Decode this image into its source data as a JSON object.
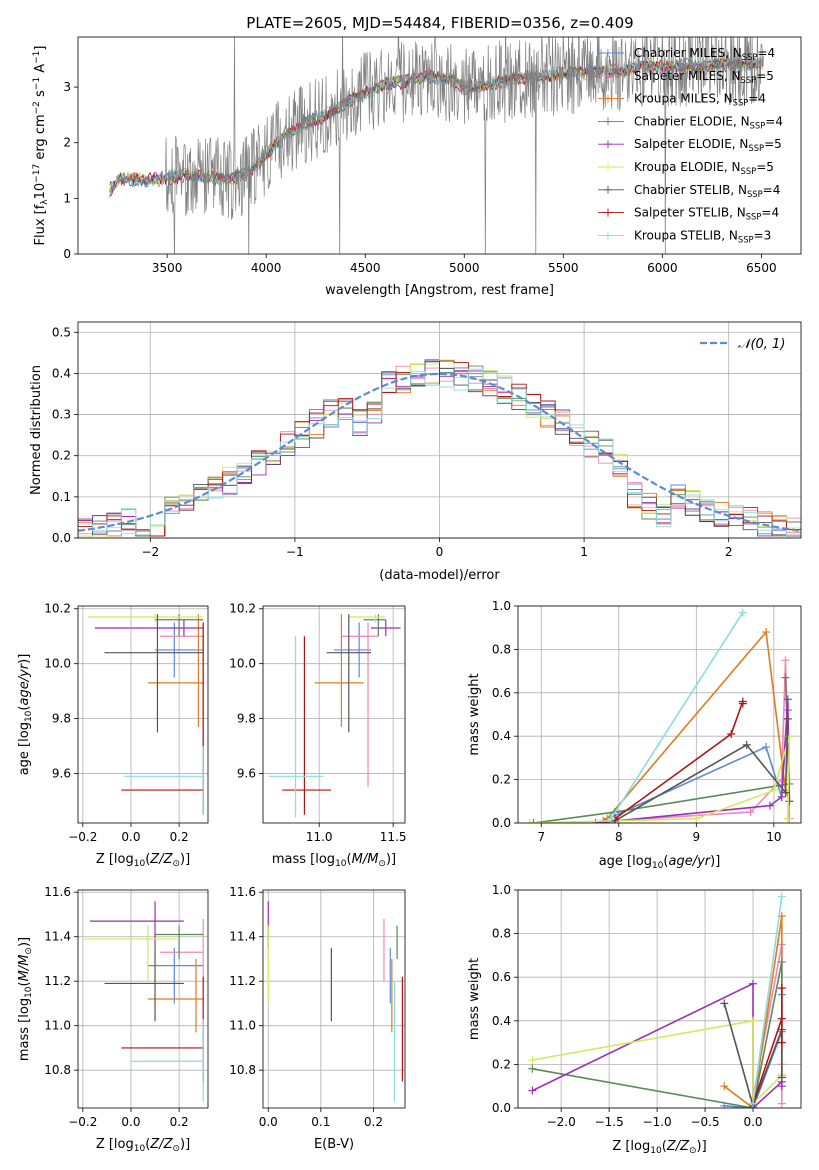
{
  "figure": {
    "title": "PLATE=2605, MJD=54484, FIBERID=0356, z=0.409"
  },
  "colors": {
    "chabrier_miles": "#5b8bd4",
    "salpeter_miles": "#ee88bb",
    "kroupa_miles": "#e07b1e",
    "chabrier_elodie": "#5a8a5a",
    "salpeter_elodie": "#9b2fb5",
    "kroupa_elodie": "#d6e85e",
    "chabrier_stelib": "#555555",
    "salpeter_stelib": "#b01515",
    "kroupa_stelib": "#88dde0",
    "gaussian": "#5b8bd4",
    "grid": "#b0b0b0"
  },
  "legend_spectrum": [
    {
      "label": "Chabrier MILES, N",
      "sub": "SSP",
      "tail": "=4",
      "color_key": "chabrier_miles"
    },
    {
      "label": "Salpeter MILES, N",
      "sub": "SSP",
      "tail": "=5",
      "color_key": "salpeter_miles"
    },
    {
      "label": "Kroupa MILES, N",
      "sub": "SSP",
      "tail": "=4",
      "color_key": "kroupa_miles"
    },
    {
      "label": "Chabrier ELODIE, N",
      "sub": "SSP",
      "tail": "=4",
      "color_key": "chabrier_elodie"
    },
    {
      "label": "Salpeter ELODIE, N",
      "sub": "SSP",
      "tail": "=5",
      "color_key": "salpeter_elodie"
    },
    {
      "label": "Kroupa ELODIE, N",
      "sub": "SSP",
      "tail": "=5",
      "color_key": "kroupa_elodie"
    },
    {
      "label": "Chabrier STELIB, N",
      "sub": "SSP",
      "tail": "=4",
      "color_key": "chabrier_stelib"
    },
    {
      "label": "Salpeter STELIB, N",
      "sub": "SSP",
      "tail": "=4",
      "color_key": "salpeter_stelib"
    },
    {
      "label": "Kroupa STELIB, N",
      "sub": "SSP",
      "tail": "=3",
      "color_key": "kroupa_stelib"
    }
  ],
  "legend_hist": {
    "label": "𝒩(0, 1)"
  },
  "chart_data": [
    {
      "id": "spectrum",
      "type": "line",
      "xlabel": "wavelength [Angstrom, rest frame]",
      "ylabel": "Flux [f",
      "xlim": [
        3050,
        6700
      ],
      "ylim": [
        0,
        3.9
      ],
      "xticks": [
        3500,
        4000,
        4500,
        5000,
        5500,
        6000,
        6500
      ],
      "yticks": [
        0,
        1,
        2,
        3
      ],
      "data_range": [
        3210,
        6510
      ],
      "continuum": {
        "x": [
          3210,
          3260,
          3400,
          3500,
          3600,
          3700,
          3800,
          3900,
          4000,
          4100,
          4200,
          4300,
          4400,
          4500,
          4600,
          4700,
          4800,
          4900,
          5000,
          5100,
          5200,
          5300,
          5400,
          5500,
          5600,
          5700,
          5800,
          5900,
          6000,
          6100,
          6200,
          6300,
          6400,
          6510
        ],
        "y": [
          1.15,
          1.35,
          1.33,
          1.36,
          1.42,
          1.4,
          1.32,
          1.45,
          1.8,
          2.15,
          2.35,
          2.5,
          2.7,
          2.9,
          3.05,
          3.1,
          3.2,
          3.15,
          3.0,
          3.05,
          3.1,
          3.15,
          3.2,
          3.25,
          3.25,
          3.3,
          3.3,
          3.35,
          3.35,
          3.4,
          3.35,
          3.4,
          3.4,
          3.45
        ]
      },
      "noise_start": 3490
    },
    {
      "id": "residual_hist",
      "type": "area",
      "xlabel": "(data-model)/error",
      "ylabel": "Normed distribution",
      "xlim": [
        -2.5,
        2.5
      ],
      "ylim": [
        0,
        0.525
      ],
      "xticks": [
        -2,
        -1,
        0,
        1,
        2
      ],
      "yticks": [
        0.0,
        0.1,
        0.2,
        0.3,
        0.4,
        0.5
      ],
      "bin_width": 0.1,
      "dip_bins": [
        -5,
        -6,
        13,
        14,
        15,
        -21,
        -20
      ]
    },
    {
      "id": "age_vs_Z",
      "type": "scatter",
      "xlabel": "Z [log",
      "ylabel": "age  [log",
      "xlim": [
        -0.22,
        0.32
      ],
      "ylim": [
        9.42,
        10.21
      ],
      "xticks": [
        -0.2,
        0.0,
        0.2
      ],
      "yticks": [
        9.6,
        9.8,
        10.0,
        10.2
      ],
      "points": [
        {
          "k": "chabrier_miles",
          "x": 0.18,
          "xe": [
            0.1,
            0.3
          ],
          "y": 10.05,
          "ye": [
            9.95,
            10.15
          ]
        },
        {
          "k": "salpeter_miles",
          "x": 0.3,
          "xe": [
            0.12,
            0.3
          ],
          "y": 10.1,
          "ye": [
            9.5,
            10.15
          ]
        },
        {
          "k": "kroupa_miles",
          "x": 0.28,
          "xe": [
            0.07,
            0.3
          ],
          "y": 9.93,
          "ye": [
            9.77,
            10.18
          ]
        },
        {
          "k": "chabrier_elodie",
          "x": 0.2,
          "xe": [
            0.1,
            0.3
          ],
          "y": 10.16,
          "ye": [
            10.1,
            10.18
          ]
        },
        {
          "k": "salpeter_elodie",
          "x": 0.22,
          "xe": [
            -0.15,
            0.3
          ],
          "y": 10.13,
          "ye": [
            10.1,
            10.16
          ]
        },
        {
          "k": "kroupa_elodie",
          "x": 0.1,
          "xe": [
            -0.18,
            0.3
          ],
          "y": 10.17,
          "ye": [
            10.15,
            10.18
          ]
        },
        {
          "k": "chabrier_stelib",
          "x": 0.11,
          "xe": [
            -0.11,
            0.3
          ],
          "y": 10.04,
          "ye": [
            9.75,
            10.18
          ]
        },
        {
          "k": "salpeter_stelib",
          "x": 0.3,
          "xe": [
            -0.04,
            0.3
          ],
          "y": 9.54,
          "ye": [
            9.45,
            10.15
          ]
        },
        {
          "k": "kroupa_stelib",
          "x": 0.3,
          "xe": [
            -0.03,
            0.3
          ],
          "y": 9.59,
          "ye": [
            9.45,
            9.7
          ]
        }
      ]
    },
    {
      "id": "age_vs_mass",
      "type": "scatter",
      "xlabel": "mass [log",
      "ylabel": "",
      "xlim": [
        10.62,
        11.58
      ],
      "ylim": [
        9.42,
        10.21
      ],
      "xticks": [
        11.0,
        11.5
      ],
      "yticks": [
        9.6,
        9.8,
        10.0,
        10.2
      ],
      "points": [
        {
          "k": "chabrier_miles",
          "x": 11.27,
          "xe": [
            11.1,
            11.35
          ],
          "y": 10.05,
          "ye": [
            9.95,
            10.15
          ]
        },
        {
          "k": "salpeter_miles",
          "x": 11.33,
          "xe": [
            11.15,
            11.4
          ],
          "y": 10.1,
          "ye": [
            9.55,
            10.15
          ]
        },
        {
          "k": "kroupa_miles",
          "x": 11.15,
          "xe": [
            10.97,
            11.3
          ],
          "y": 9.93,
          "ye": [
            9.77,
            10.18
          ]
        },
        {
          "k": "chabrier_elodie",
          "x": 11.4,
          "xe": [
            11.3,
            11.45
          ],
          "y": 10.16,
          "ye": [
            10.1,
            10.18
          ]
        },
        {
          "k": "salpeter_elodie",
          "x": 11.45,
          "xe": [
            11.35,
            11.55
          ],
          "y": 10.13,
          "ye": [
            10.1,
            10.16
          ]
        },
        {
          "k": "kroupa_elodie",
          "x": 11.38,
          "xe": [
            11.2,
            11.45
          ],
          "y": 10.17,
          "ye": [
            10.15,
            10.18
          ]
        },
        {
          "k": "chabrier_stelib",
          "x": 11.2,
          "xe": [
            11.05,
            11.35
          ],
          "y": 10.04,
          "ye": [
            9.75,
            10.18
          ]
        },
        {
          "k": "salpeter_stelib",
          "x": 10.9,
          "xe": [
            10.75,
            11.08
          ],
          "y": 9.54,
          "ye": [
            9.45,
            10.1
          ]
        },
        {
          "k": "kroupa_stelib",
          "x": 10.84,
          "xe": [
            10.66,
            11.03
          ],
          "y": 9.59,
          "ye": [
            9.44,
            10.1
          ]
        }
      ]
    },
    {
      "id": "weight_vs_age",
      "type": "line",
      "xlabel": "age  [log",
      "ylabel": "mass weight",
      "xlim": [
        6.7,
        10.35
      ],
      "ylim": [
        0,
        1.0
      ],
      "xticks": [
        7,
        8,
        9,
        10
      ],
      "yticks": [
        0.0,
        0.2,
        0.4,
        0.6,
        0.8,
        1.0
      ],
      "series": [
        {
          "k": "chabrier_miles",
          "x": [
            7.8,
            9.9,
            10.1,
            10.18
          ],
          "y": [
            0.01,
            0.35,
            0.12,
            0.52
          ]
        },
        {
          "k": "salpeter_miles",
          "x": [
            7.9,
            9.7,
            10.1,
            10.15,
            10.2
          ],
          "y": [
            0.01,
            0.05,
            0.2,
            0.75,
            0.02
          ]
        },
        {
          "k": "kroupa_miles",
          "x": [
            7.85,
            9.9,
            10.15,
            10.2
          ],
          "y": [
            0.02,
            0.88,
            0.15,
            0.1
          ]
        },
        {
          "k": "chabrier_elodie",
          "x": [
            6.9,
            7.95,
            10.2,
            10.15
          ],
          "y": [
            0.0,
            0.05,
            0.18,
            0.67
          ]
        },
        {
          "k": "salpeter_elodie",
          "x": [
            7.7,
            9.95,
            10.1,
            10.18,
            10.2
          ],
          "y": [
            0.0,
            0.08,
            0.12,
            0.57,
            0.1
          ]
        },
        {
          "k": "kroupa_elodie",
          "x": [
            6.85,
            9.0,
            10.0,
            10.2,
            10.18
          ],
          "y": [
            0.0,
            0.02,
            0.15,
            0.4,
            0.02
          ]
        },
        {
          "k": "chabrier_stelib",
          "x": [
            7.95,
            9.65,
            10.15,
            10.18
          ],
          "y": [
            0.01,
            0.36,
            0.14,
            0.48
          ]
        },
        {
          "k": "salpeter_stelib",
          "x": [
            7.95,
            9.45,
            9.6,
            9.6
          ],
          "y": [
            0.02,
            0.41,
            0.56,
            0.55
          ]
        },
        {
          "k": "kroupa_stelib",
          "x": [
            7.9,
            9.6
          ],
          "y": [
            0.02,
            0.97
          ]
        }
      ]
    },
    {
      "id": "mass_vs_Z",
      "type": "scatter",
      "xlabel": "Z [log",
      "ylabel": "mass [log",
      "xlim": [
        -0.22,
        0.32
      ],
      "ylim": [
        10.63,
        11.61
      ],
      "xticks": [
        -0.2,
        0.0,
        0.2
      ],
      "yticks": [
        10.8,
        11.0,
        11.2,
        11.4,
        11.6
      ],
      "points": [
        {
          "k": "chabrier_miles",
          "x": 0.18,
          "xe": [
            0.07,
            0.3
          ],
          "y": 11.27,
          "ye": [
            11.1,
            11.35
          ]
        },
        {
          "k": "salpeter_miles",
          "x": 0.3,
          "xe": [
            0.12,
            0.3
          ],
          "y": 11.33,
          "ye": [
            11.2,
            11.48
          ]
        },
        {
          "k": "kroupa_miles",
          "x": 0.27,
          "xe": [
            0.07,
            0.3
          ],
          "y": 11.12,
          "ye": [
            10.97,
            11.3
          ]
        },
        {
          "k": "chabrier_elodie",
          "x": 0.2,
          "xe": [
            0.1,
            0.3
          ],
          "y": 11.41,
          "ye": [
            11.3,
            11.45
          ]
        },
        {
          "k": "salpeter_elodie",
          "x": 0.1,
          "xe": [
            -0.17,
            0.22
          ],
          "y": 11.47,
          "ye": [
            11.35,
            11.56
          ]
        },
        {
          "k": "kroupa_elodie",
          "x": 0.07,
          "xe": [
            -0.2,
            0.2
          ],
          "y": 11.39,
          "ye": [
            11.2,
            11.45
          ]
        },
        {
          "k": "chabrier_stelib",
          "x": 0.1,
          "xe": [
            -0.11,
            0.22
          ],
          "y": 11.19,
          "ye": [
            11.02,
            11.35
          ]
        },
        {
          "k": "salpeter_stelib",
          "x": 0.3,
          "xe": [
            -0.04,
            0.3
          ],
          "y": 10.9,
          "ye": [
            10.75,
            11.22
          ]
        },
        {
          "k": "kroupa_stelib",
          "x": 0.3,
          "xe": [
            0.0,
            0.3
          ],
          "y": 10.84,
          "ye": [
            10.66,
            11.03
          ]
        }
      ]
    },
    {
      "id": "mass_vs_ebv",
      "type": "scatter",
      "xlabel": "E(B-V)",
      "ylabel": "",
      "xlim": [
        -0.01,
        0.26
      ],
      "ylim": [
        10.63,
        11.61
      ],
      "xticks": [
        0.0,
        0.1,
        0.2
      ],
      "yticks": [
        10.8,
        11.0,
        11.2,
        11.4,
        11.6
      ],
      "points": [
        {
          "k": "chabrier_miles",
          "x": 0.232,
          "xe": [
            0.232,
            0.232
          ],
          "y": 11.27,
          "ye": [
            11.1,
            11.35
          ]
        },
        {
          "k": "salpeter_miles",
          "x": 0.22,
          "xe": [
            0.22,
            0.22
          ],
          "y": 11.33,
          "ye": [
            11.2,
            11.48
          ]
        },
        {
          "k": "kroupa_miles",
          "x": 0.235,
          "xe": [
            0.235,
            0.235
          ],
          "y": 11.12,
          "ye": [
            10.97,
            11.3
          ]
        },
        {
          "k": "chabrier_elodie",
          "x": 0.245,
          "xe": [
            0.245,
            0.245
          ],
          "y": 11.41,
          "ye": [
            11.3,
            11.45
          ]
        },
        {
          "k": "salpeter_elodie",
          "x": 0.0,
          "xe": [
            0.0,
            0.0
          ],
          "y": 11.47,
          "ye": [
            11.35,
            11.56
          ]
        },
        {
          "k": "kroupa_elodie",
          "x": 0.0,
          "xe": [
            0.0,
            0.0
          ],
          "y": 11.3,
          "ye": [
            11.1,
            11.45
          ]
        },
        {
          "k": "chabrier_stelib",
          "x": 0.12,
          "xe": [
            0.12,
            0.12
          ],
          "y": 11.19,
          "ye": [
            11.02,
            11.35
          ]
        },
        {
          "k": "salpeter_stelib",
          "x": 0.255,
          "xe": [
            0.255,
            0.255
          ],
          "y": 10.98,
          "ye": [
            10.75,
            11.22
          ]
        },
        {
          "k": "kroupa_stelib",
          "x": 0.24,
          "xe": [
            0.24,
            0.24
          ],
          "y": 11.03,
          "ye": [
            10.66,
            11.2
          ]
        }
      ]
    },
    {
      "id": "weight_vs_Z",
      "type": "line",
      "xlabel": "Z [log",
      "ylabel": "mass weight",
      "xlim": [
        -2.45,
        0.5
      ],
      "ylim": [
        0,
        1.0
      ],
      "xticks": [
        -2.0,
        -1.5,
        -1.0,
        -0.5,
        0.0
      ],
      "yticks": [
        0.0,
        0.2,
        0.4,
        0.6,
        0.8,
        1.0
      ],
      "series": [
        {
          "k": "chabrier_miles",
          "x": [
            -0.3,
            0.0,
            0.3,
            0.3
          ],
          "y": [
            0.01,
            0.0,
            0.35,
            0.52
          ]
        },
        {
          "k": "salpeter_miles",
          "x": [
            0.0,
            0.3,
            0.3,
            0.3
          ],
          "y": [
            0.05,
            0.75,
            0.2,
            0.02
          ]
        },
        {
          "k": "kroupa_miles",
          "x": [
            -0.3,
            0.0,
            0.3,
            0.3
          ],
          "y": [
            0.1,
            0.0,
            0.88,
            0.15
          ]
        },
        {
          "k": "chabrier_elodie",
          "x": [
            -2.3,
            0.0,
            0.3,
            0.3
          ],
          "y": [
            0.18,
            0.0,
            0.67,
            0.15
          ]
        },
        {
          "k": "salpeter_elodie",
          "x": [
            -2.3,
            0.0,
            0.0,
            0.3,
            0.3
          ],
          "y": [
            0.08,
            0.57,
            0.0,
            0.12,
            0.1
          ]
        },
        {
          "k": "kroupa_elodie",
          "x": [
            -2.3,
            0.0,
            0.0,
            0.3
          ],
          "y": [
            0.22,
            0.4,
            0.02,
            0.15
          ]
        },
        {
          "k": "chabrier_stelib",
          "x": [
            -0.3,
            0.0,
            0.3,
            0.3
          ],
          "y": [
            0.48,
            0.01,
            0.36,
            0.14
          ]
        },
        {
          "k": "salpeter_stelib",
          "x": [
            0.0,
            0.3,
            0.3,
            0.3
          ],
          "y": [
            0.02,
            0.41,
            0.55,
            0.3
          ]
        },
        {
          "k": "kroupa_stelib",
          "x": [
            0.0,
            0.3
          ],
          "y": [
            0.02,
            0.97
          ]
        }
      ]
    }
  ]
}
